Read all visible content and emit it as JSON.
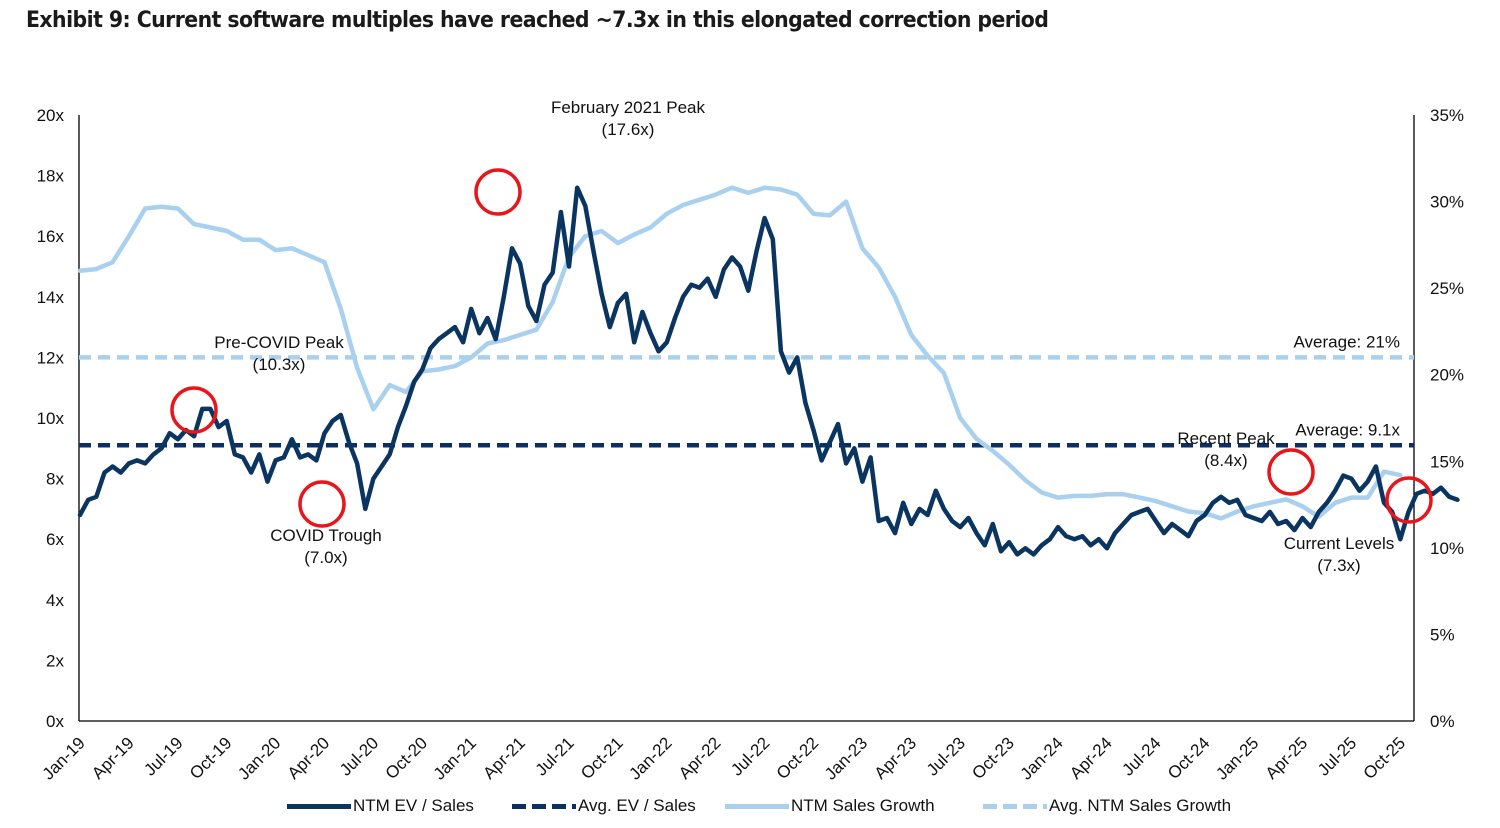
{
  "title": "Exhibit 9: Current software multiples have reached ~7.3x in this elongated correction period",
  "chart_data": {
    "type": "line",
    "title": "Exhibit 9: Current software multiples have reached ~7.3x in this elongated correction period",
    "xlabel": "",
    "ylabel_left": "NTM EV / Sales",
    "ylabel_right": "NTM Sales Growth",
    "y_left": {
      "min": 0,
      "max": 20,
      "ticks": [
        "0x",
        "2x",
        "4x",
        "6x",
        "8x",
        "10x",
        "12x",
        "14x",
        "16x",
        "18x",
        "20x"
      ]
    },
    "y_right": {
      "min": 0,
      "max": 35,
      "ticks": [
        "0%",
        "5%",
        "10%",
        "15%",
        "20%",
        "25%",
        "30%",
        "35%"
      ]
    },
    "x_range": [
      "Jan-19",
      "Oct-25"
    ],
    "x_ticks": [
      "Jan-19",
      "Apr-19",
      "Jul-19",
      "Oct-19",
      "Jan-20",
      "Apr-20",
      "Jul-20",
      "Oct-20",
      "Jan-21",
      "Apr-21",
      "Jul-21",
      "Oct-21",
      "Jan-22",
      "Apr-22",
      "Jul-22",
      "Oct-22",
      "Jan-23",
      "Apr-23",
      "Jul-23",
      "Oct-23",
      "Jan-24",
      "Apr-24",
      "Jul-24",
      "Oct-24",
      "Jan-25",
      "Apr-25",
      "Jul-25",
      "Oct-25"
    ],
    "grid": false,
    "legend_position": "bottom",
    "series": [
      {
        "name": "NTM EV / Sales",
        "axis": "left",
        "style": "solid",
        "color": "#0b3561",
        "frequency": "semi-monthly from Jan-19",
        "values": [
          6.8,
          7.3,
          7.4,
          8.2,
          8.4,
          8.2,
          8.5,
          8.6,
          8.5,
          8.8,
          9.0,
          9.5,
          9.3,
          9.6,
          9.4,
          10.3,
          10.3,
          9.7,
          9.9,
          8.8,
          8.7,
          8.2,
          8.8,
          7.9,
          8.6,
          8.7,
          9.3,
          8.7,
          8.8,
          8.6,
          9.5,
          9.9,
          10.1,
          9.2,
          8.5,
          7.0,
          8.0,
          8.4,
          8.8,
          9.7,
          10.4,
          11.2,
          11.6,
          12.3,
          12.6,
          12.8,
          13.0,
          12.5,
          13.6,
          12.8,
          13.3,
          12.6,
          14.0,
          15.6,
          15.1,
          13.7,
          13.2,
          14.4,
          14.8,
          16.8,
          15.0,
          17.6,
          17.0,
          15.5,
          14.1,
          13.0,
          13.8,
          14.1,
          12.5,
          13.5,
          12.8,
          12.2,
          12.5,
          13.3,
          14.0,
          14.4,
          14.3,
          14.6,
          14.0,
          14.9,
          15.3,
          15.0,
          14.2,
          15.5,
          16.6,
          15.9,
          12.2,
          11.5,
          12.0,
          10.5,
          9.6,
          8.6,
          9.2,
          9.8,
          8.5,
          9.0,
          7.9,
          8.7,
          6.6,
          6.7,
          6.2,
          7.2,
          6.5,
          7.0,
          6.8,
          7.6,
          7.0,
          6.6,
          6.4,
          6.7,
          6.2,
          5.8,
          6.5,
          5.6,
          5.9,
          5.5,
          5.7,
          5.5,
          5.8,
          6.0,
          6.4,
          6.1,
          6.0,
          6.1,
          5.8,
          6.0,
          5.7,
          6.2,
          6.5,
          6.8,
          6.9,
          7.0,
          6.6,
          6.2,
          6.5,
          6.3,
          6.1,
          6.6,
          6.8,
          7.2,
          7.4,
          7.2,
          7.3,
          6.8,
          6.7,
          6.6,
          6.9,
          6.5,
          6.6,
          6.3,
          6.7,
          6.4,
          6.9,
          7.2,
          7.6,
          8.1,
          8.0,
          7.6,
          7.9,
          8.4,
          7.2,
          6.9,
          6.0,
          6.9,
          7.5,
          7.6,
          7.5,
          7.7,
          7.4,
          7.3
        ]
      },
      {
        "name": "Avg. EV / Sales",
        "axis": "left",
        "style": "dashed",
        "color": "#0b2f63",
        "value": 9.1,
        "label": "Average: 9.1x"
      },
      {
        "name": "NTM Sales Growth",
        "axis": "right",
        "style": "solid",
        "color": "#a9d0ee",
        "unit": "%",
        "frequency": "monthly from Jan-19",
        "values": [
          26.0,
          26.1,
          26.5,
          28.0,
          29.6,
          29.7,
          29.6,
          28.7,
          28.5,
          28.3,
          27.8,
          27.8,
          27.2,
          27.3,
          26.9,
          26.5,
          23.8,
          20.4,
          18.0,
          19.4,
          19.0,
          20.2,
          20.3,
          20.5,
          21.0,
          21.8,
          22.0,
          22.3,
          22.6,
          24.2,
          26.8,
          28.0,
          28.3,
          27.6,
          28.1,
          28.5,
          29.3,
          29.8,
          30.1,
          30.4,
          30.8,
          30.5,
          30.8,
          30.7,
          30.4,
          29.3,
          29.2,
          30.0,
          27.3,
          26.2,
          24.5,
          22.3,
          21.1,
          20.1,
          17.5,
          16.3,
          15.6,
          14.8,
          13.9,
          13.2,
          12.9,
          13.0,
          13.0,
          13.1,
          13.1,
          12.9,
          12.7,
          12.4,
          12.1,
          12.0,
          11.7,
          12.1,
          12.4,
          12.6,
          12.8,
          12.4,
          11.8,
          12.6,
          12.9,
          12.9,
          14.4,
          14.2
        ]
      },
      {
        "name": "Avg. NTM Sales Growth",
        "axis": "right",
        "style": "dashed",
        "color": "#a9d0ee",
        "value": 21,
        "label": "Average: 21%"
      }
    ],
    "annotations": [
      {
        "label": "Pre-COVID Peak",
        "value_label": "(10.3x)",
        "date": "Aug-19",
        "value": 10.3
      },
      {
        "label": "COVID Trough",
        "value_label": "(7.0x)",
        "date": "Mar-20",
        "value": 7.0
      },
      {
        "label": "February 2021 Peak",
        "value_label": "(17.6x)",
        "date": "Feb-21",
        "value": 17.6
      },
      {
        "label": "Recent Peak",
        "value_label": "(8.4x)",
        "date": "Feb-25",
        "value": 8.4
      },
      {
        "label": "Current Levels",
        "value_label": "(7.3x)",
        "date": "Oct-25",
        "value": 7.3
      }
    ]
  },
  "legend": [
    {
      "label": "NTM EV / Sales",
      "style": "solid-dark"
    },
    {
      "label": "Avg. EV / Sales",
      "style": "dash-dark"
    },
    {
      "label": "NTM Sales Growth",
      "style": "solid-light"
    },
    {
      "label": "Avg. NTM Sales Growth",
      "style": "dash-light"
    }
  ],
  "colors": {
    "annotation_circle": "#e8161b",
    "axis": "#000000"
  }
}
